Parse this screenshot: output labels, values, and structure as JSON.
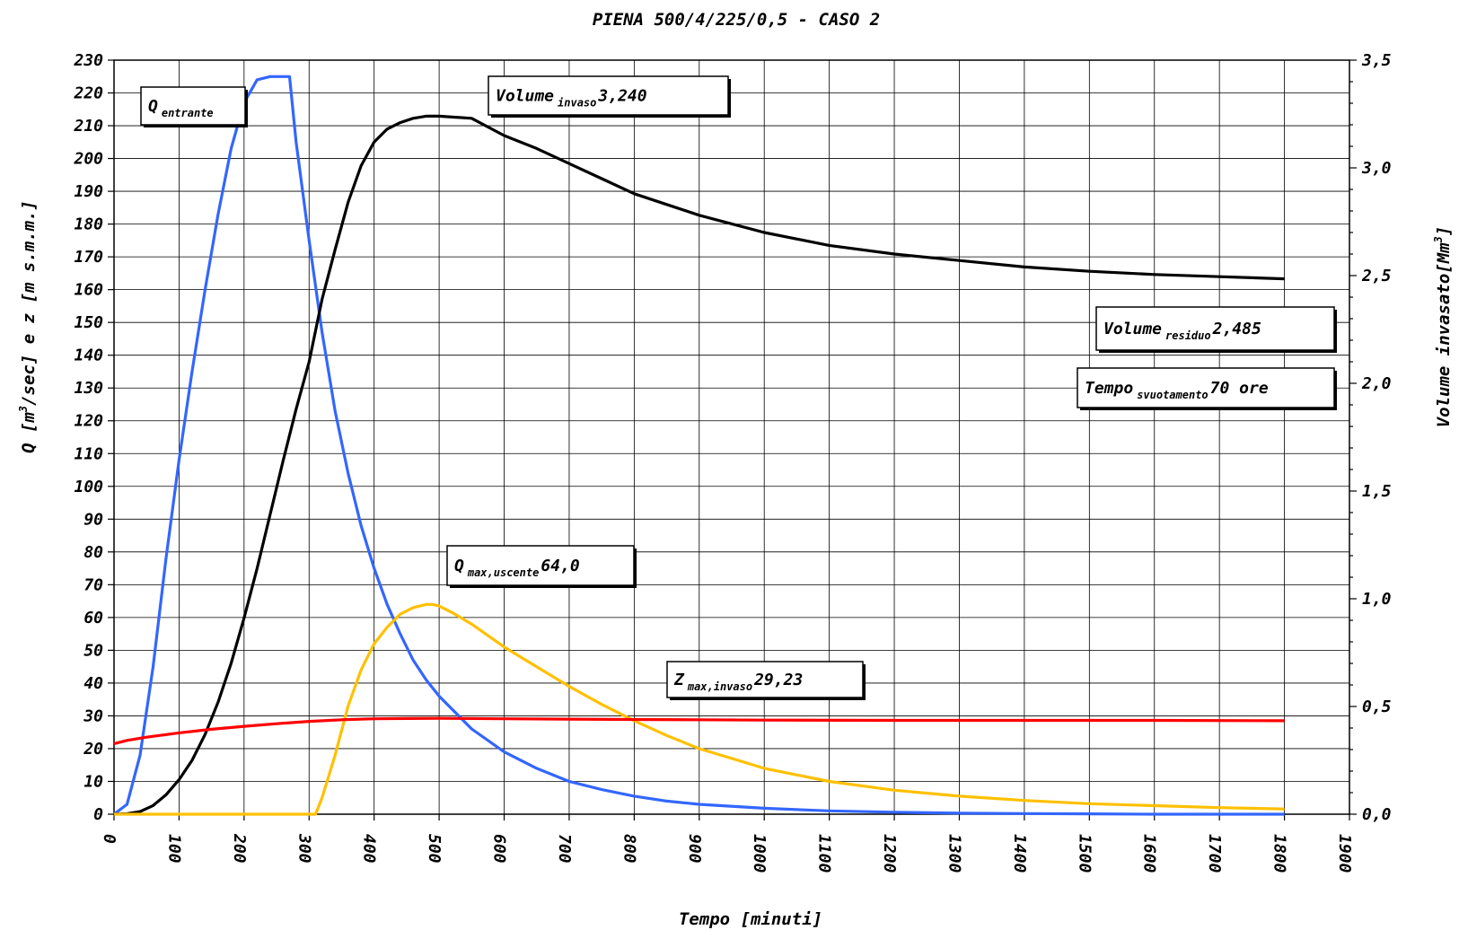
{
  "chart_data": {
    "type": "line",
    "title": "PIENA 500/4/225/0,5 - CASO 2",
    "xlabel": "Tempo [minuti]",
    "ylabel_left": {
      "main": "Q [m",
      "sup": "3",
      "rest": "/sec] e z [m s.m.m.]"
    },
    "ylabel_right": {
      "main": "Volume invasato[Mm",
      "sup": "3",
      "rest": "]"
    },
    "xlim": [
      0,
      1900
    ],
    "ylim_left": [
      0,
      230
    ],
    "ylim_right": [
      0,
      3.5
    ],
    "x_ticks": [
      "0",
      "100",
      "200",
      "300",
      "400",
      "500",
      "600",
      "700",
      "800",
      "900",
      "1000",
      "1100",
      "1200",
      "1300",
      "1400",
      "1500",
      "1600",
      "1700",
      "1800",
      "1900"
    ],
    "y_ticks_left": [
      "0",
      "10",
      "20",
      "30",
      "40",
      "50",
      "60",
      "70",
      "80",
      "90",
      "100",
      "110",
      "120",
      "130",
      "140",
      "150",
      "160",
      "170",
      "180",
      "190",
      "200",
      "210",
      "220",
      "230"
    ],
    "y_ticks_right": [
      "0,0",
      "0,5",
      "1,0",
      "1,5",
      "2,0",
      "2,5",
      "3,0",
      "3,5"
    ],
    "grid": true,
    "colors": {
      "inflow": "#3366ff",
      "volume": "#000000",
      "outflow": "#ffc000",
      "level": "#ff0000"
    },
    "series": [
      {
        "key": "inflow",
        "axis": "left",
        "x": [
          0,
          20,
          40,
          60,
          80,
          100,
          120,
          140,
          160,
          180,
          200,
          220,
          240,
          260,
          270,
          280,
          300,
          320,
          340,
          360,
          380,
          400,
          420,
          440,
          460,
          480,
          500,
          550,
          600,
          650,
          700,
          750,
          800,
          850,
          900,
          1000,
          1100,
          1200,
          1300,
          1400,
          1500,
          1600,
          1700,
          1800
        ],
        "y": [
          0,
          3,
          18,
          45,
          78,
          108,
          135,
          160,
          183,
          203,
          217,
          224,
          225,
          225,
          225,
          205,
          175,
          147,
          123,
          104,
          88,
          75,
          64,
          55,
          47,
          41,
          36,
          26,
          19,
          14,
          10,
          7.5,
          5.5,
          4,
          3,
          1.8,
          1,
          0.6,
          0.3,
          0.2,
          0.1,
          0,
          0,
          0
        ]
      },
      {
        "key": "volume",
        "axis": "right",
        "x": [
          0,
          20,
          40,
          60,
          80,
          100,
          120,
          140,
          160,
          180,
          200,
          220,
          240,
          260,
          280,
          300,
          320,
          340,
          360,
          380,
          400,
          420,
          440,
          460,
          480,
          500,
          550,
          600,
          650,
          700,
          750,
          800,
          850,
          900,
          1000,
          1100,
          1200,
          1300,
          1400,
          1500,
          1600,
          1700,
          1800
        ],
        "y": [
          0,
          0.002,
          0.012,
          0.04,
          0.09,
          0.16,
          0.25,
          0.37,
          0.52,
          0.7,
          0.91,
          1.14,
          1.39,
          1.64,
          1.88,
          2.1,
          2.39,
          2.62,
          2.84,
          3.01,
          3.12,
          3.18,
          3.21,
          3.23,
          3.24,
          3.24,
          3.23,
          3.15,
          3.09,
          3.02,
          2.95,
          2.88,
          2.83,
          2.78,
          2.7,
          2.64,
          2.6,
          2.57,
          2.54,
          2.52,
          2.505,
          2.495,
          2.485
        ]
      },
      {
        "key": "outflow",
        "axis": "left",
        "x": [
          0,
          300,
          310,
          320,
          340,
          360,
          380,
          400,
          420,
          440,
          460,
          480,
          490,
          500,
          520,
          550,
          600,
          650,
          700,
          750,
          800,
          850,
          900,
          950,
          1000,
          1100,
          1200,
          1300,
          1400,
          1500,
          1600,
          1700,
          1800
        ],
        "y": [
          0,
          0,
          0,
          5,
          18,
          33,
          44,
          52,
          57,
          61,
          63,
          64,
          64,
          63.5,
          61.5,
          58,
          51,
          45,
          39,
          33.5,
          28.5,
          24,
          20,
          17,
          14,
          10,
          7.3,
          5.5,
          4.2,
          3.2,
          2.6,
          2,
          1.6
        ]
      },
      {
        "key": "level",
        "axis": "left",
        "x": [
          0,
          20,
          50,
          100,
          150,
          200,
          250,
          300,
          350,
          400,
          450,
          500,
          600,
          700,
          800,
          900,
          1000,
          1200,
          1400,
          1600,
          1800
        ],
        "y": [
          21.5,
          22.5,
          23.5,
          24.8,
          25.9,
          26.8,
          27.6,
          28.3,
          28.8,
          29.1,
          29.2,
          29.23,
          29.1,
          29.0,
          28.9,
          28.8,
          28.7,
          28.6,
          28.6,
          28.6,
          28.5
        ]
      }
    ],
    "annotations": [
      {
        "key": "inflow_label",
        "main": "Q",
        "sub": "entrante",
        "value": ""
      },
      {
        "key": "volume_max",
        "main": "Volume",
        "sub": "invaso",
        "value": "3,240"
      },
      {
        "key": "volume_residual",
        "main": "Volume",
        "sub": "residuo",
        "value": "2,485"
      },
      {
        "key": "empty_time",
        "main": "Tempo",
        "sub": "svuotamento",
        "value": "70 ore"
      },
      {
        "key": "q_max_out",
        "main": "Q",
        "sub": "max,uscente",
        "value": "64,0"
      },
      {
        "key": "z_max",
        "main": "Z",
        "sub": "max,invaso",
        "value": "29,23"
      }
    ]
  }
}
